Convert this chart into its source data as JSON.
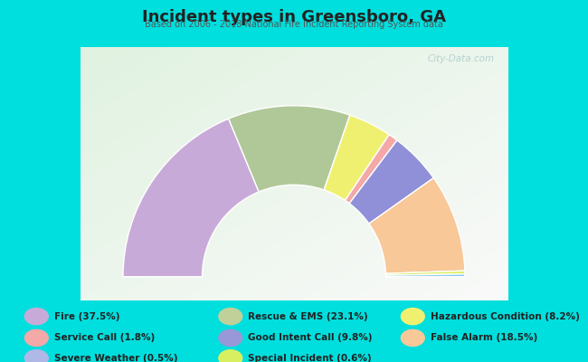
{
  "title": "Incident types in Greensboro, GA",
  "subtitle": "Based on 2006 - 2018 National Fire Incident Reporting System data",
  "background_outer": "#00dede",
  "background_chart_tl": "#d8ede0",
  "background_chart_br": "#f0f8f0",
  "watermark": "City-Data.com",
  "slices": [
    {
      "label": "Fire",
      "pct": 37.5,
      "color": "#c8aad8"
    },
    {
      "label": "Rescue & EMS",
      "pct": 23.1,
      "color": "#b0c898"
    },
    {
      "label": "Hazardous Condition",
      "pct": 8.2,
      "color": "#f0f070"
    },
    {
      "label": "Service Call",
      "pct": 1.8,
      "color": "#f4a8a8"
    },
    {
      "label": "Good Intent Call",
      "pct": 9.8,
      "color": "#9090d8"
    },
    {
      "label": "False Alarm",
      "pct": 18.5,
      "color": "#f8c898"
    },
    {
      "label": "Special Incident",
      "pct": 0.6,
      "color": "#d8f060"
    },
    {
      "label": "Severe Weather",
      "pct": 0.5,
      "color": "#90c8f0"
    }
  ],
  "legend_items": [
    {
      "label": "Fire (37.5%)",
      "color": "#c8aad8"
    },
    {
      "label": "Service Call (1.8%)",
      "color": "#f4a8a8"
    },
    {
      "label": "Severe Weather (0.5%)",
      "color": "#b0b8e8"
    },
    {
      "label": "Rescue & EMS (23.1%)",
      "color": "#c0d098"
    },
    {
      "label": "Good Intent Call (9.8%)",
      "color": "#9898d8"
    },
    {
      "label": "Special Incident (0.6%)",
      "color": "#d8f060"
    },
    {
      "label": "Hazardous Condition (8.2%)",
      "color": "#f0f070"
    },
    {
      "label": "False Alarm (18.5%)",
      "color": "#f8c898"
    }
  ],
  "title_color": "#222222",
  "subtitle_color": "#555555",
  "text_color": "#222222"
}
